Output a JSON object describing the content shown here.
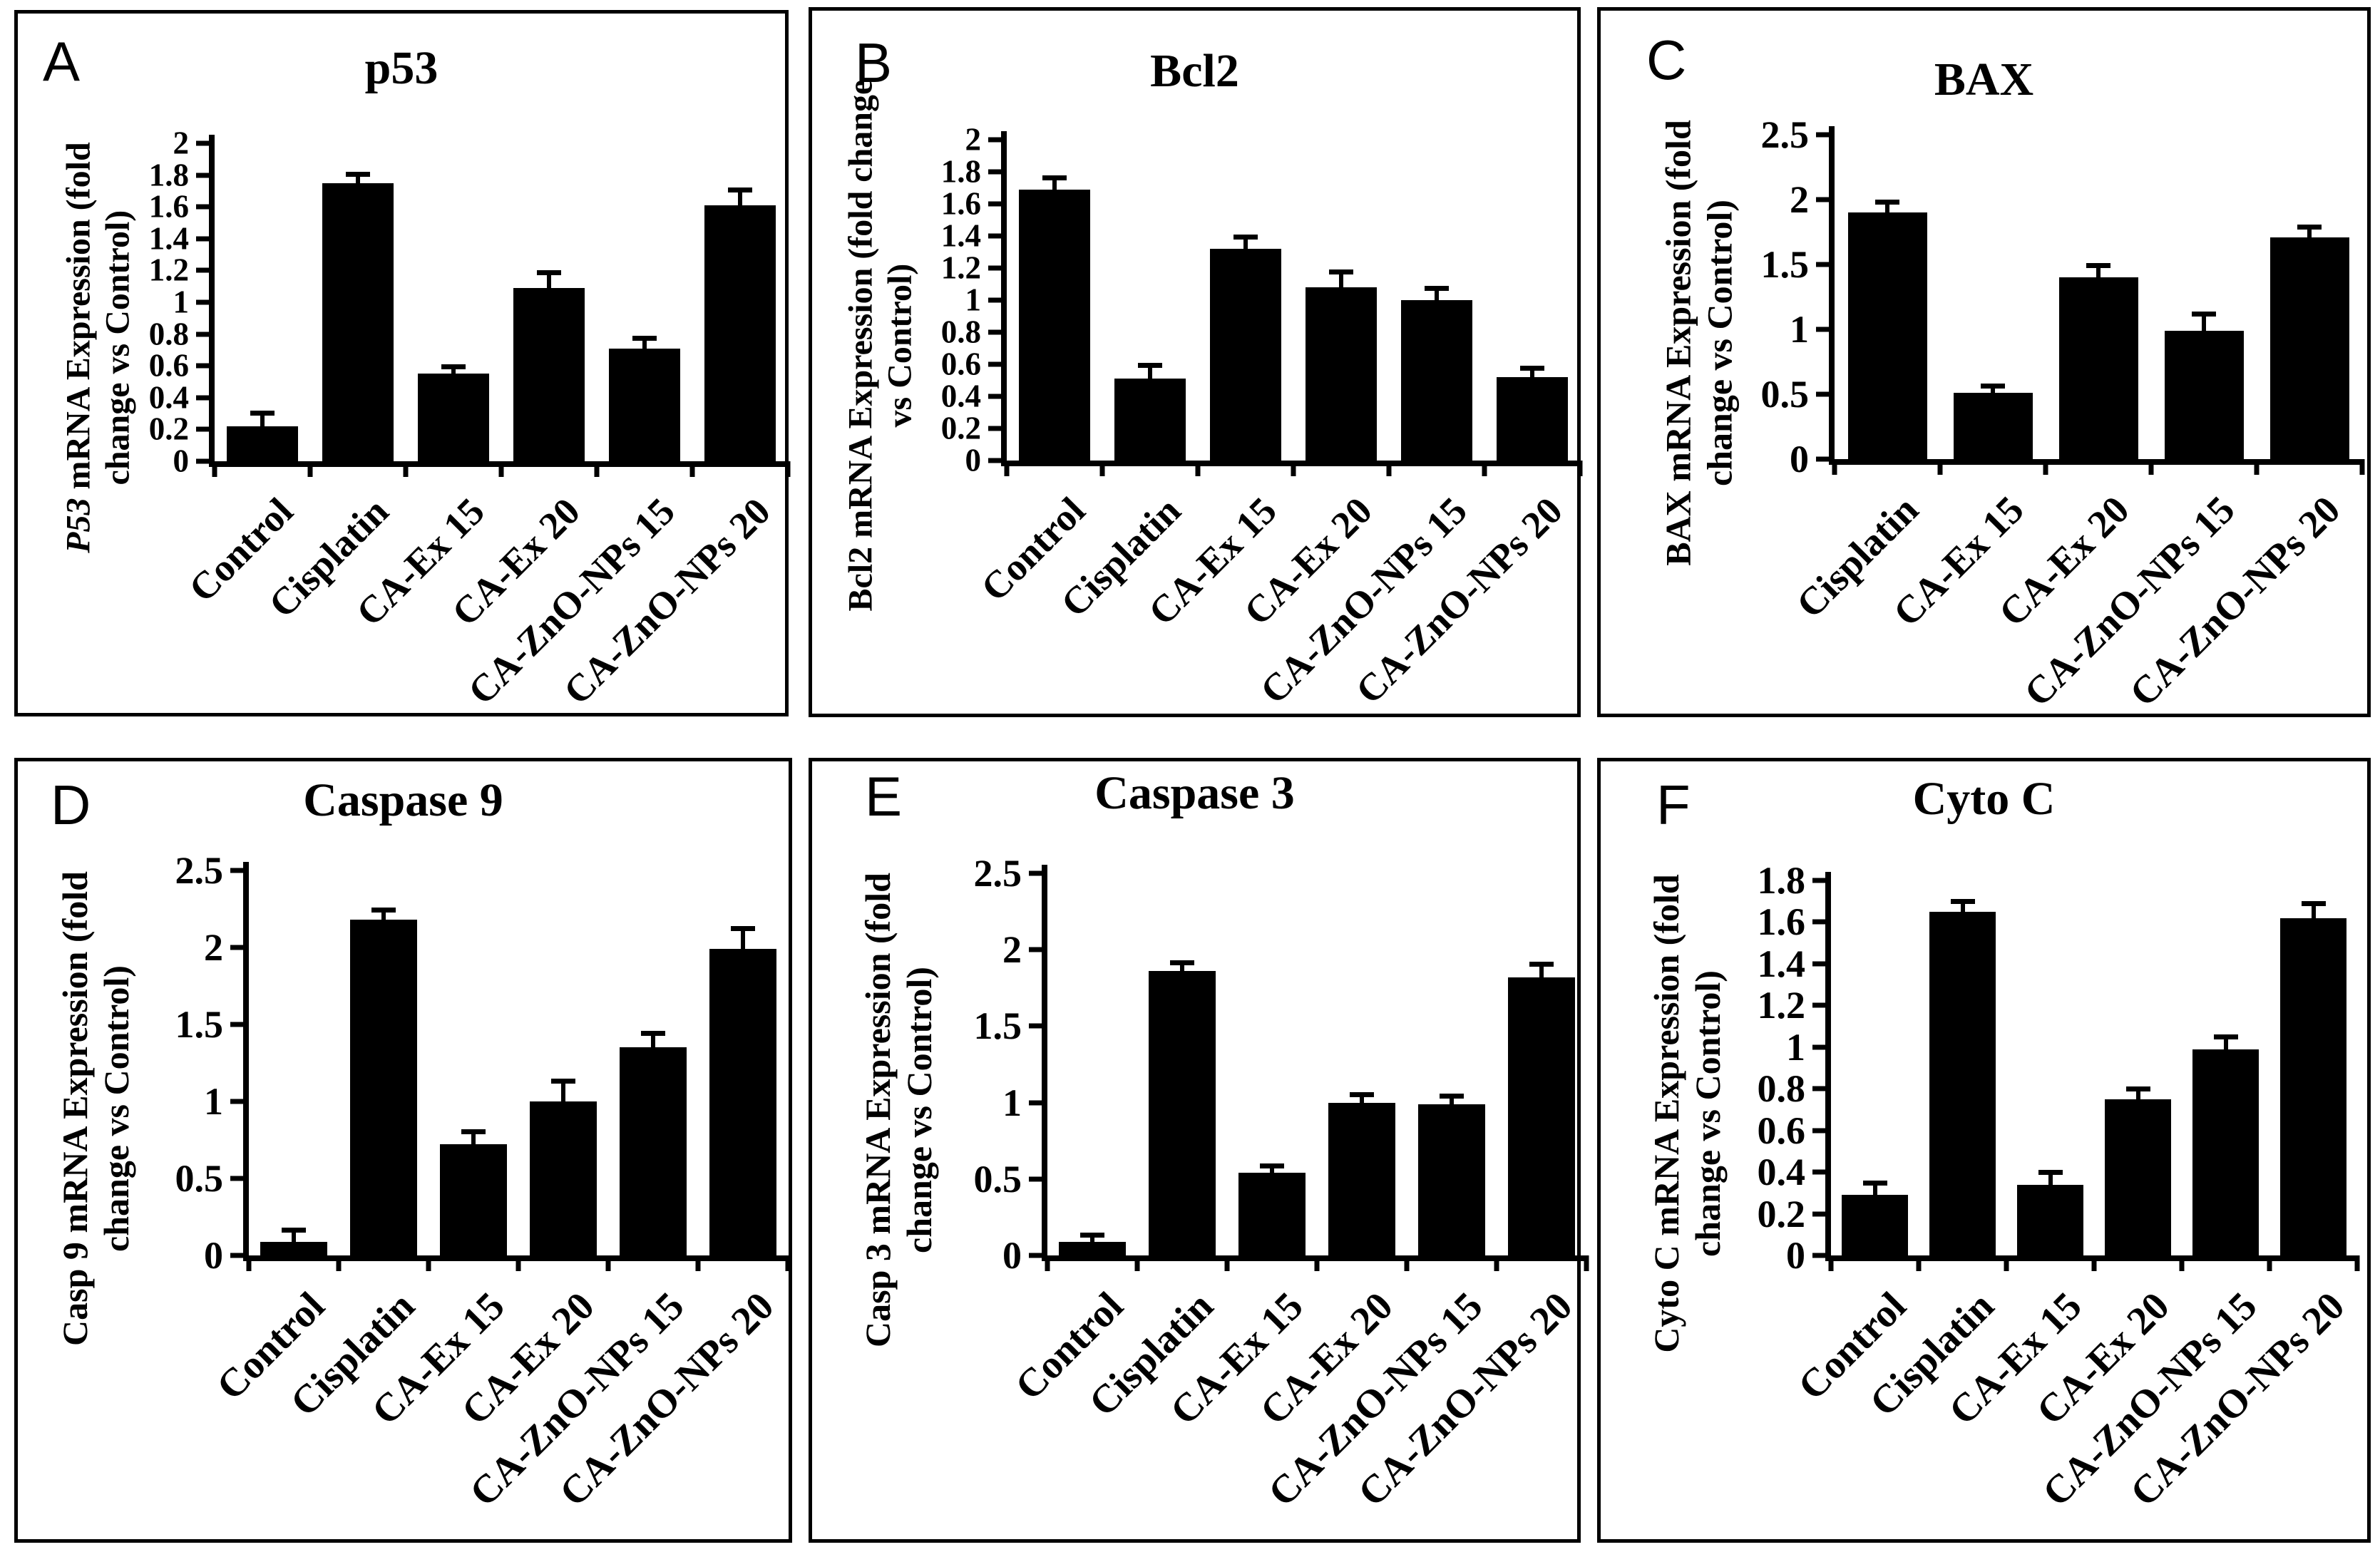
{
  "figure": {
    "background": "#ffffff",
    "ink": "#000000",
    "bar_color": "#000000",
    "description_visible_panels": [
      "A",
      "B",
      "C",
      "D",
      "E",
      "F"
    ]
  },
  "chart_data": [
    {
      "type": "bar",
      "panel_label": "A",
      "title": "p53",
      "ylabel": "P53 mRNA Expression (fold change vs Control)",
      "ylabel_lines": [
        "P53 mRNA Expression (fold",
        "change vs Control)"
      ],
      "italic_prefix": "P53",
      "xlabel": "",
      "ylim": [
        0,
        2
      ],
      "yticks": [
        "0",
        "0.2",
        "0.4",
        "0.6",
        "0.8",
        "1",
        "1.2",
        "1.4",
        "1.6",
        "1.8",
        "2"
      ],
      "categories": [
        "Control",
        "Cisplatin",
        "CA-Ex 15",
        "CA-Ex 20",
        "CA-ZnO-NPs 15",
        "CA-ZnO-NPs 20"
      ],
      "values": [
        0.22,
        1.75,
        0.55,
        1.09,
        0.71,
        1.61
      ],
      "errors": [
        0.1,
        0.07,
        0.06,
        0.11,
        0.08,
        0.11
      ],
      "grid": false,
      "legend": false,
      "bar_color": "#000000"
    },
    {
      "type": "bar",
      "panel_label": "B",
      "title": "Bcl2",
      "ylabel": "Bcl2 mRNA Expression (fold change vs Control)",
      "ylabel_lines": [
        "Bcl2 mRNA Expression (fold change",
        "vs Control)"
      ],
      "xlabel": "",
      "ylim": [
        0,
        2
      ],
      "yticks": [
        "0",
        "0.2",
        "0.4",
        "0.6",
        "0.8",
        "1",
        "1.2",
        "1.4",
        "1.6",
        "1.8",
        "2"
      ],
      "categories": [
        "Control",
        "Cisplatin",
        "CA-Ex 15",
        "CA-Ex 20",
        "CA-ZnO-NPs 15",
        "CA-ZnO-NPs 20"
      ],
      "values": [
        1.69,
        0.51,
        1.32,
        1.08,
        1.0,
        0.52
      ],
      "errors": [
        0.09,
        0.1,
        0.09,
        0.11,
        0.09,
        0.07
      ],
      "grid": false,
      "legend": false,
      "bar_color": "#000000"
    },
    {
      "type": "bar",
      "panel_label": "C",
      "title": "BAX",
      "ylabel": "BAX mRNA Expression (fold change vs Control)",
      "ylabel_lines": [
        "BAX mRNA Expression (fold",
        "change vs Control)"
      ],
      "xlabel": "",
      "ylim": [
        0,
        2.5
      ],
      "yticks": [
        "0",
        "0.5",
        "1",
        "1.5",
        "2",
        "2.5"
      ],
      "categories": [
        "Cisplatin",
        "CA-Ex 15",
        "CA-Ex 20",
        "CA-ZnO-NPs 15",
        "CA-ZnO-NPs 20"
      ],
      "values": [
        1.9,
        0.51,
        1.4,
        0.99,
        1.71
      ],
      "errors": [
        0.1,
        0.07,
        0.11,
        0.15,
        0.1
      ],
      "grid": false,
      "legend": false,
      "bar_color": "#000000"
    },
    {
      "type": "bar",
      "panel_label": "D",
      "title": "Caspase 9",
      "ylabel": "Casp 9 mRNA Expression (fold change vs Control)",
      "ylabel_lines": [
        "Casp 9 mRNA Expression (fold",
        "change vs Control)"
      ],
      "xlabel": "",
      "ylim": [
        0,
        2.5
      ],
      "yticks": [
        "0",
        "0.5",
        "1",
        "1.5",
        "2",
        "2.5"
      ],
      "categories": [
        "Control",
        "Cisplatin",
        "CA-Ex 15",
        "CA-Ex 20",
        "CA-ZnO-NPs 15",
        "CA-ZnO-NPs 20"
      ],
      "values": [
        0.09,
        2.18,
        0.72,
        1.0,
        1.35,
        1.99
      ],
      "errors": [
        0.09,
        0.08,
        0.1,
        0.15,
        0.11,
        0.15
      ],
      "grid": false,
      "legend": false,
      "bar_color": "#000000"
    },
    {
      "type": "bar",
      "panel_label": "E",
      "title": "Caspase 3",
      "ylabel": "Casp 3 mRNA Expression (fold change vs Control)",
      "ylabel_lines": [
        "Casp 3 mRNA Expression (fold",
        "change vs Control)"
      ],
      "xlabel": "",
      "ylim": [
        0,
        2.5
      ],
      "yticks": [
        "0",
        "0.5",
        "1",
        "1.5",
        "2",
        "2.5"
      ],
      "categories": [
        "Control",
        "Cisplatin",
        "CA-Ex 15",
        "CA-Ex 20",
        "CA-ZnO-NPs 15",
        "CA-ZnO-NPs 20"
      ],
      "values": [
        0.09,
        1.86,
        0.54,
        1.0,
        0.99,
        1.82
      ],
      "errors": [
        0.06,
        0.07,
        0.06,
        0.07,
        0.07,
        0.1
      ],
      "grid": false,
      "legend": false,
      "bar_color": "#000000"
    },
    {
      "type": "bar",
      "panel_label": "F",
      "title": "Cyto C",
      "ylabel": "Cyto C mRNA Expression (fold change vs Control)",
      "ylabel_lines": [
        "Cyto C mRNA Expression (fold",
        "change vs Control)"
      ],
      "xlabel": "",
      "ylim": [
        0,
        1.8
      ],
      "yticks": [
        "0",
        "0.2",
        "0.4",
        "0.6",
        "0.8",
        "1",
        "1.2",
        "1.4",
        "1.6",
        "1.8"
      ],
      "categories": [
        "Control",
        "Cisplatin",
        "CA-Ex 15",
        "CA-Ex 20",
        "CA-ZnO-NPs 15",
        "CA-ZnO-NPs 20"
      ],
      "values": [
        0.29,
        1.65,
        0.34,
        0.75,
        0.99,
        1.62
      ],
      "errors": [
        0.07,
        0.06,
        0.07,
        0.06,
        0.07,
        0.08
      ],
      "grid": false,
      "legend": false,
      "bar_color": "#000000"
    }
  ]
}
